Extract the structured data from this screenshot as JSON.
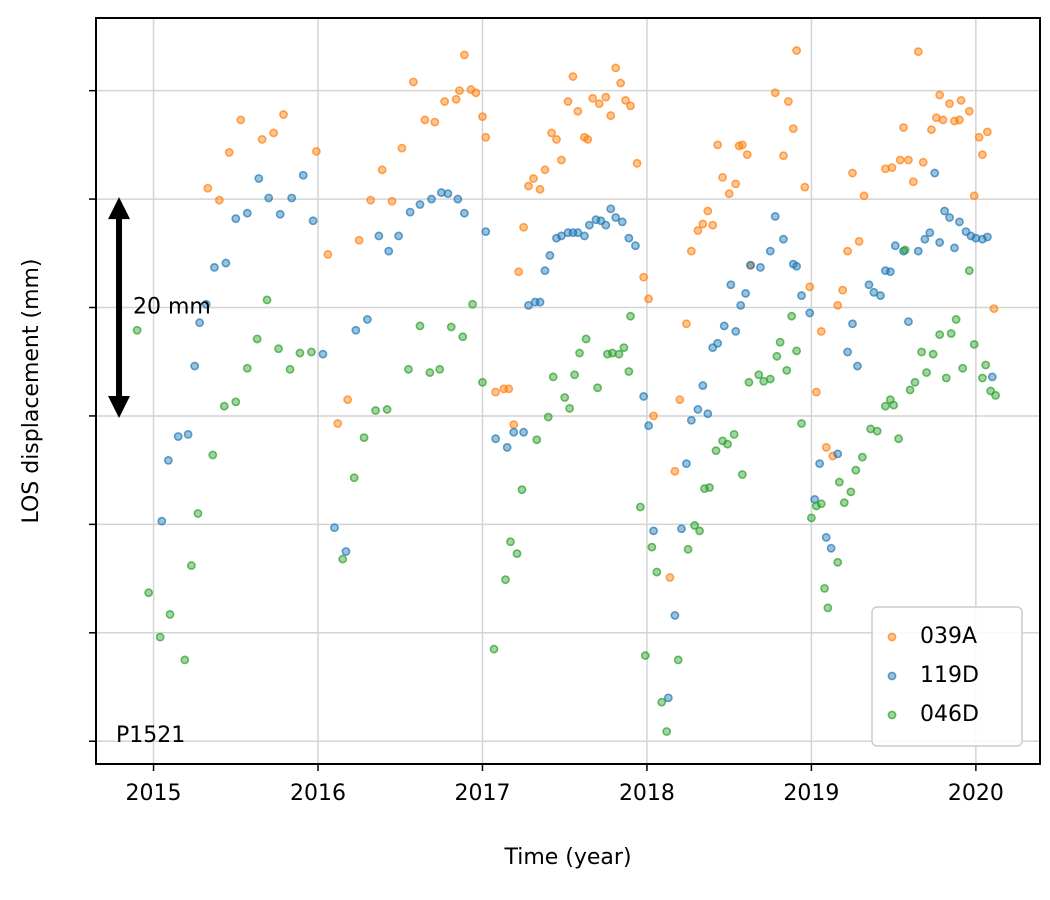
{
  "chart_data": {
    "type": "scatter",
    "xlabel": "Time (year)",
    "ylabel": "LOS displacement (mm)",
    "annotation": "P1521",
    "arrow": {
      "x": 2014.79,
      "from": 30,
      "to": 50,
      "label": "20 mm"
    },
    "xlim": [
      2014.65,
      2020.39
    ],
    "xticks": [
      2015,
      2016,
      2017,
      2018,
      2019,
      2020
    ],
    "ylim": [
      -2.1,
      66.7
    ],
    "yticks": [
      0,
      10,
      20,
      30,
      40,
      50,
      60
    ],
    "ytick_labels_visible": false,
    "grid": true,
    "legend": "lower right",
    "series": [
      {
        "name": "039A",
        "color": "#ff7f0e",
        "x": [
          2015.33,
          2015.4,
          2015.46,
          2015.53,
          2015.66,
          2015.73,
          2015.79,
          2015.99,
          2016.06,
          2016.12,
          2016.18,
          2016.25,
          2016.32,
          2016.39,
          2016.45,
          2016.51,
          2016.58,
          2016.65,
          2016.71,
          2016.77,
          2016.84,
          2016.86,
          2016.89,
          2016.93,
          2016.96,
          2017.0,
          2017.02,
          2017.08,
          2017.13,
          2017.16,
          2017.19,
          2017.22,
          2017.25,
          2017.28,
          2017.31,
          2017.35,
          2017.38,
          2017.42,
          2017.45,
          2017.48,
          2017.52,
          2017.55,
          2017.58,
          2017.62,
          2017.64,
          2017.67,
          2017.71,
          2017.75,
          2017.78,
          2017.81,
          2017.84,
          2017.87,
          2017.9,
          2017.94,
          2017.98,
          2018.01,
          2018.04,
          2018.14,
          2018.17,
          2018.2,
          2018.24,
          2018.27,
          2018.31,
          2018.34,
          2018.37,
          2018.4,
          2018.43,
          2018.46,
          2018.5,
          2018.54,
          2018.56,
          2018.58,
          2018.61,
          2018.63,
          2018.78,
          2018.83,
          2018.86,
          2018.89,
          2018.91,
          2018.96,
          2018.99,
          2019.03,
          2019.06,
          2019.09,
          2019.13,
          2019.16,
          2019.19,
          2019.22,
          2019.25,
          2019.29,
          2019.32,
          2019.45,
          2019.49,
          2019.54,
          2019.56,
          2019.59,
          2019.62,
          2019.65,
          2019.68,
          2019.73,
          2019.76,
          2019.78,
          2019.8,
          2019.84,
          2019.87,
          2019.9,
          2019.91,
          2019.96,
          2019.99,
          2020.02,
          2020.04,
          2020.07,
          2020.11
        ],
        "values": [
          51.0,
          49.9,
          54.3,
          57.3,
          55.5,
          56.1,
          57.8,
          54.4,
          44.9,
          29.3,
          31.5,
          46.2,
          49.9,
          52.7,
          49.8,
          54.7,
          60.8,
          57.3,
          57.1,
          59.0,
          59.2,
          60.0,
          63.3,
          60.1,
          59.8,
          57.6,
          55.7,
          32.2,
          32.5,
          32.5,
          29.2,
          43.3,
          47.4,
          51.2,
          51.9,
          50.9,
          52.7,
          56.1,
          55.5,
          53.6,
          59.0,
          61.3,
          58.1,
          55.7,
          55.5,
          59.3,
          58.8,
          59.4,
          57.7,
          62.1,
          60.7,
          59.1,
          58.6,
          53.3,
          42.8,
          40.8,
          30.0,
          15.1,
          24.9,
          31.5,
          38.5,
          45.2,
          47.1,
          47.7,
          48.9,
          47.6,
          55.0,
          52.0,
          50.5,
          51.4,
          54.9,
          55.0,
          54.1,
          43.9,
          59.8,
          54.0,
          59.0,
          56.5,
          63.7,
          51.1,
          41.9,
          32.2,
          37.8,
          27.1,
          26.3,
          40.2,
          41.6,
          45.2,
          52.4,
          46.1,
          50.3,
          52.8,
          52.9,
          53.6,
          56.6,
          53.6,
          51.6,
          63.6,
          53.4,
          56.4,
          57.5,
          59.6,
          57.3,
          58.8,
          57.2,
          57.3,
          59.1,
          58.1,
          50.3,
          55.7,
          54.1,
          56.2,
          39.9
        ]
      },
      {
        "name": "119D",
        "color": "#1f77b4",
        "x": [
          2015.05,
          2015.09,
          2015.15,
          2015.21,
          2015.25,
          2015.28,
          2015.32,
          2015.37,
          2015.44,
          2015.5,
          2015.57,
          2015.64,
          2015.7,
          2015.77,
          2015.84,
          2015.91,
          2015.97,
          2016.03,
          2016.1,
          2016.17,
          2016.23,
          2016.3,
          2016.37,
          2016.43,
          2016.49,
          2016.56,
          2016.62,
          2016.69,
          2016.75,
          2016.79,
          2016.85,
          2016.89,
          2017.02,
          2017.08,
          2017.15,
          2017.19,
          2017.25,
          2017.28,
          2017.32,
          2017.35,
          2017.38,
          2017.41,
          2017.45,
          2017.48,
          2017.52,
          2017.55,
          2017.58,
          2017.62,
          2017.65,
          2017.69,
          2017.72,
          2017.75,
          2017.78,
          2017.81,
          2017.85,
          2017.89,
          2017.93,
          2017.98,
          2018.01,
          2018.04,
          2018.13,
          2018.17,
          2018.21,
          2018.24,
          2018.27,
          2018.31,
          2018.34,
          2018.37,
          2018.4,
          2018.43,
          2018.47,
          2018.51,
          2018.54,
          2018.57,
          2018.6,
          2018.63,
          2018.69,
          2018.75,
          2018.78,
          2018.83,
          2018.89,
          2018.91,
          2018.94,
          2018.99,
          2019.02,
          2019.05,
          2019.09,
          2019.12,
          2019.16,
          2019.22,
          2019.25,
          2019.28,
          2019.35,
          2019.38,
          2019.42,
          2019.45,
          2019.48,
          2019.51,
          2019.56,
          2019.59,
          2019.65,
          2019.69,
          2019.72,
          2019.75,
          2019.78,
          2019.81,
          2019.84,
          2019.87,
          2019.9,
          2019.94,
          2019.97,
          2020.0,
          2020.04,
          2020.07,
          2020.1
        ],
        "values": [
          20.3,
          25.9,
          28.1,
          28.3,
          34.6,
          38.6,
          40.3,
          43.7,
          44.1,
          48.2,
          48.7,
          51.9,
          50.1,
          48.6,
          50.1,
          52.2,
          48.0,
          35.7,
          19.7,
          17.5,
          37.9,
          38.9,
          46.6,
          45.2,
          46.6,
          48.8,
          49.5,
          50.0,
          50.6,
          50.5,
          50.0,
          48.7,
          47.0,
          27.9,
          27.1,
          28.5,
          28.5,
          40.2,
          40.5,
          40.5,
          43.4,
          44.8,
          46.4,
          46.6,
          46.9,
          46.9,
          46.9,
          46.6,
          47.6,
          48.1,
          48.0,
          47.6,
          49.1,
          48.3,
          47.9,
          46.4,
          45.7,
          31.8,
          29.1,
          19.4,
          4.0,
          11.6,
          19.6,
          25.6,
          29.6,
          30.6,
          32.8,
          30.2,
          36.3,
          36.7,
          38.3,
          42.1,
          37.8,
          40.2,
          41.3,
          43.9,
          43.7,
          45.2,
          48.4,
          46.3,
          44.0,
          43.8,
          41.1,
          39.5,
          22.3,
          25.6,
          18.8,
          17.8,
          26.5,
          35.9,
          38.5,
          34.6,
          42.1,
          41.4,
          41.1,
          43.4,
          43.3,
          45.7,
          45.2,
          38.7,
          45.2,
          46.3,
          46.9,
          52.4,
          46.0,
          48.9,
          48.3,
          45.5,
          47.9,
          47.0,
          46.6,
          46.4,
          46.3,
          46.5,
          33.6
        ]
      },
      {
        "name": "046D",
        "color": "#2ca02c",
        "x": [
          2014.9,
          2014.97,
          2015.04,
          2015.1,
          2015.19,
          2015.23,
          2015.27,
          2015.36,
          2015.43,
          2015.5,
          2015.57,
          2015.63,
          2015.69,
          2015.76,
          2015.83,
          2015.89,
          2015.96,
          2016.15,
          2016.22,
          2016.28,
          2016.35,
          2016.42,
          2016.55,
          2016.62,
          2016.68,
          2016.74,
          2016.81,
          2016.88,
          2016.94,
          2017.0,
          2017.07,
          2017.14,
          2017.17,
          2017.21,
          2017.24,
          2017.33,
          2017.4,
          2017.43,
          2017.5,
          2017.53,
          2017.56,
          2017.59,
          2017.63,
          2017.7,
          2017.76,
          2017.79,
          2017.83,
          2017.86,
          2017.89,
          2017.9,
          2017.96,
          2017.99,
          2018.03,
          2018.06,
          2018.09,
          2018.12,
          2018.19,
          2018.25,
          2018.29,
          2018.32,
          2018.35,
          2018.38,
          2018.42,
          2018.46,
          2018.49,
          2018.53,
          2018.58,
          2018.62,
          2018.68,
          2018.71,
          2018.75,
          2018.79,
          2018.81,
          2018.85,
          2018.88,
          2018.91,
          2018.94,
          2019.0,
          2019.03,
          2019.06,
          2019.08,
          2019.1,
          2019.16,
          2019.17,
          2019.2,
          2019.24,
          2019.27,
          2019.31,
          2019.36,
          2019.4,
          2019.45,
          2019.48,
          2019.5,
          2019.53,
          2019.57,
          2019.6,
          2019.63,
          2019.67,
          2019.7,
          2019.74,
          2019.78,
          2019.82,
          2019.85,
          2019.88,
          2019.92,
          2019.96,
          2019.99,
          2020.04,
          2020.06,
          2020.09,
          2020.12
        ],
        "values": [
          37.9,
          13.7,
          9.6,
          11.7,
          7.5,
          16.2,
          21.0,
          26.4,
          30.9,
          31.3,
          34.4,
          37.1,
          40.7,
          36.2,
          34.3,
          35.8,
          35.9,
          16.8,
          24.3,
          28.0,
          30.5,
          30.6,
          34.3,
          38.3,
          34.0,
          34.3,
          38.2,
          37.3,
          40.3,
          33.1,
          8.5,
          14.9,
          18.4,
          17.3,
          23.2,
          27.8,
          29.9,
          33.6,
          31.7,
          30.7,
          33.8,
          35.8,
          37.1,
          32.6,
          35.7,
          35.8,
          35.7,
          36.3,
          34.1,
          39.2,
          21.6,
          7.9,
          17.9,
          15.6,
          3.6,
          0.9,
          7.5,
          17.7,
          19.9,
          19.4,
          23.3,
          23.4,
          26.8,
          27.7,
          27.4,
          28.3,
          24.6,
          33.1,
          33.8,
          33.2,
          33.4,
          35.5,
          36.8,
          34.2,
          39.2,
          36.0,
          29.3,
          20.6,
          21.7,
          21.9,
          14.1,
          12.3,
          16.5,
          23.9,
          22.0,
          23.0,
          25.0,
          26.2,
          28.8,
          28.6,
          30.9,
          31.5,
          31.0,
          27.9,
          45.3,
          32.4,
          33.1,
          35.9,
          34.0,
          35.7,
          37.5,
          33.5,
          37.6,
          38.9,
          34.4,
          43.4,
          36.6,
          33.5,
          34.7,
          32.3,
          31.9
        ]
      }
    ]
  }
}
